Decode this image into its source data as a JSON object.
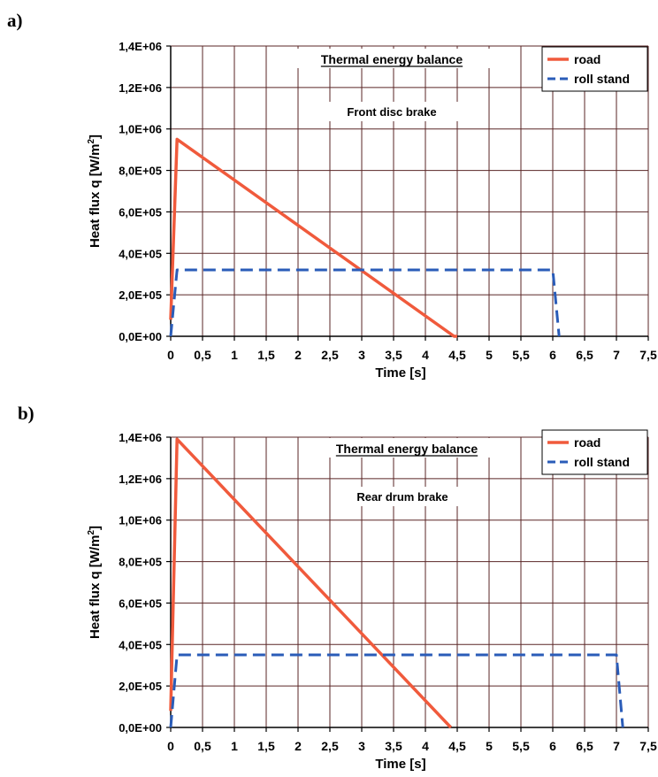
{
  "chart_data": [
    {
      "panel_label": "a)",
      "type": "line",
      "title": "Thermal energy balance",
      "subtitle": "Front disc brake",
      "xlabel": "Time [s]",
      "ylabel_main": "Heat flux q [W/m",
      "ylabel_sup": "2",
      "ylabel_end": "]",
      "xlim": [
        0,
        7.5
      ],
      "ylim": [
        0,
        1400000
      ],
      "x_ticks": [
        "0",
        "0,5",
        "1",
        "1,5",
        "2",
        "2,5",
        "3",
        "3,5",
        "4",
        "4,5",
        "5",
        "5,5",
        "6",
        "6,5",
        "7",
        "7,5"
      ],
      "y_ticks": [
        "0,0E+00",
        "2,0E+05",
        "4,0E+05",
        "6,0E+05",
        "8,0E+05",
        "1,0E+06",
        "1,2E+06",
        "1,4E+06"
      ],
      "grid": true,
      "legend_position": "top-right",
      "series": [
        {
          "name": "road",
          "color": "#f05a3c",
          "dash": "solid",
          "x": [
            0,
            0.1,
            4.45,
            4.5
          ],
          "y": [
            80000,
            950000,
            0,
            0
          ]
        },
        {
          "name": "roll stand",
          "color": "#2a5cb8",
          "dash": "dashed",
          "x": [
            0,
            0.1,
            6.0,
            6.1
          ],
          "y": [
            0,
            320000,
            320000,
            0
          ]
        }
      ]
    },
    {
      "panel_label": "b)",
      "type": "line",
      "title": "Thermal energy balance",
      "subtitle": "Rear drum brake",
      "xlabel": "Time [s]",
      "ylabel_main": "Heat flux q [W/m",
      "ylabel_sup": "2",
      "ylabel_end": "]",
      "xlim": [
        0,
        7.5
      ],
      "ylim": [
        0,
        1400000
      ],
      "x_ticks": [
        "0",
        "0,5",
        "1",
        "1,5",
        "2",
        "2,5",
        "3",
        "3,5",
        "4",
        "4,5",
        "5",
        "5,5",
        "6",
        "6,5",
        "7",
        "7,5"
      ],
      "y_ticks": [
        "0,0E+00",
        "2,0E+05",
        "4,0E+05",
        "6,0E+05",
        "8,0E+05",
        "1,0E+06",
        "1,2E+06",
        "1,4E+06"
      ],
      "grid": true,
      "legend_position": "top-right",
      "series": [
        {
          "name": "road",
          "color": "#f05a3c",
          "dash": "solid",
          "x": [
            0,
            0.1,
            4.4
          ],
          "y": [
            80000,
            1390000,
            0
          ]
        },
        {
          "name": "roll stand",
          "color": "#2a5cb8",
          "dash": "dashed",
          "x": [
            0,
            0.1,
            7.0,
            7.1
          ],
          "y": [
            0,
            350000,
            350000,
            0
          ]
        }
      ]
    }
  ]
}
